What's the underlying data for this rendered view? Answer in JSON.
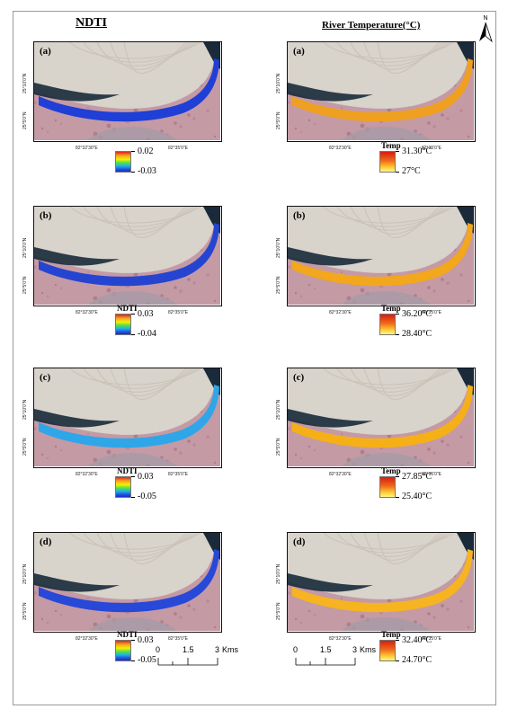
{
  "titles": {
    "left": "NDTI",
    "right": "River Temperature(°C)"
  },
  "north": {
    "label": "N"
  },
  "map_axes": {
    "lat_top": "25°10'0\"N",
    "lat_bottom": "25°5'0\"N",
    "lon_left": "82°32'30\"E",
    "lon_right": "82°35'0\"E"
  },
  "panels": [
    {
      "label": "(a)"
    },
    {
      "label": "(b)"
    },
    {
      "label": "(c)"
    },
    {
      "label": "(d)"
    }
  ],
  "ndti_legends": [
    {
      "title": "",
      "max": "0.02",
      "min": "-0.03"
    },
    {
      "title": "NDTI",
      "max": "0.03",
      "min": "-0.04"
    },
    {
      "title": "NDTI",
      "max": "0.03",
      "min": "-0.05"
    },
    {
      "title": "NDTI",
      "max": "0.03",
      "min": "-0.05"
    }
  ],
  "temp_legends": [
    {
      "title": "Temp",
      "max": "31.30°C",
      "min": "27°C"
    },
    {
      "title": "Temp",
      "max": "36.20°C",
      "min": "28.40°C"
    },
    {
      "title": "Temp",
      "max": "27.85°C",
      "min": "25.40°C"
    },
    {
      "title": "Temp",
      "max": "32.40°C",
      "min": "24.70°C"
    }
  ],
  "scalebar": {
    "ticks": [
      "0",
      "1.5",
      "3"
    ],
    "unit": "Kms"
  },
  "colors": {
    "land": "#c49aa5",
    "sandbar": "#d8d3cb",
    "water_dark": "#1a2a3a",
    "ndti_river": [
      "#1f3fd6",
      "#2545d0",
      "#2fa6e8",
      "#2848d8"
    ],
    "temp_river": [
      "#f0a020",
      "#f2a71c",
      "#f5b018",
      "#f6b420"
    ]
  }
}
